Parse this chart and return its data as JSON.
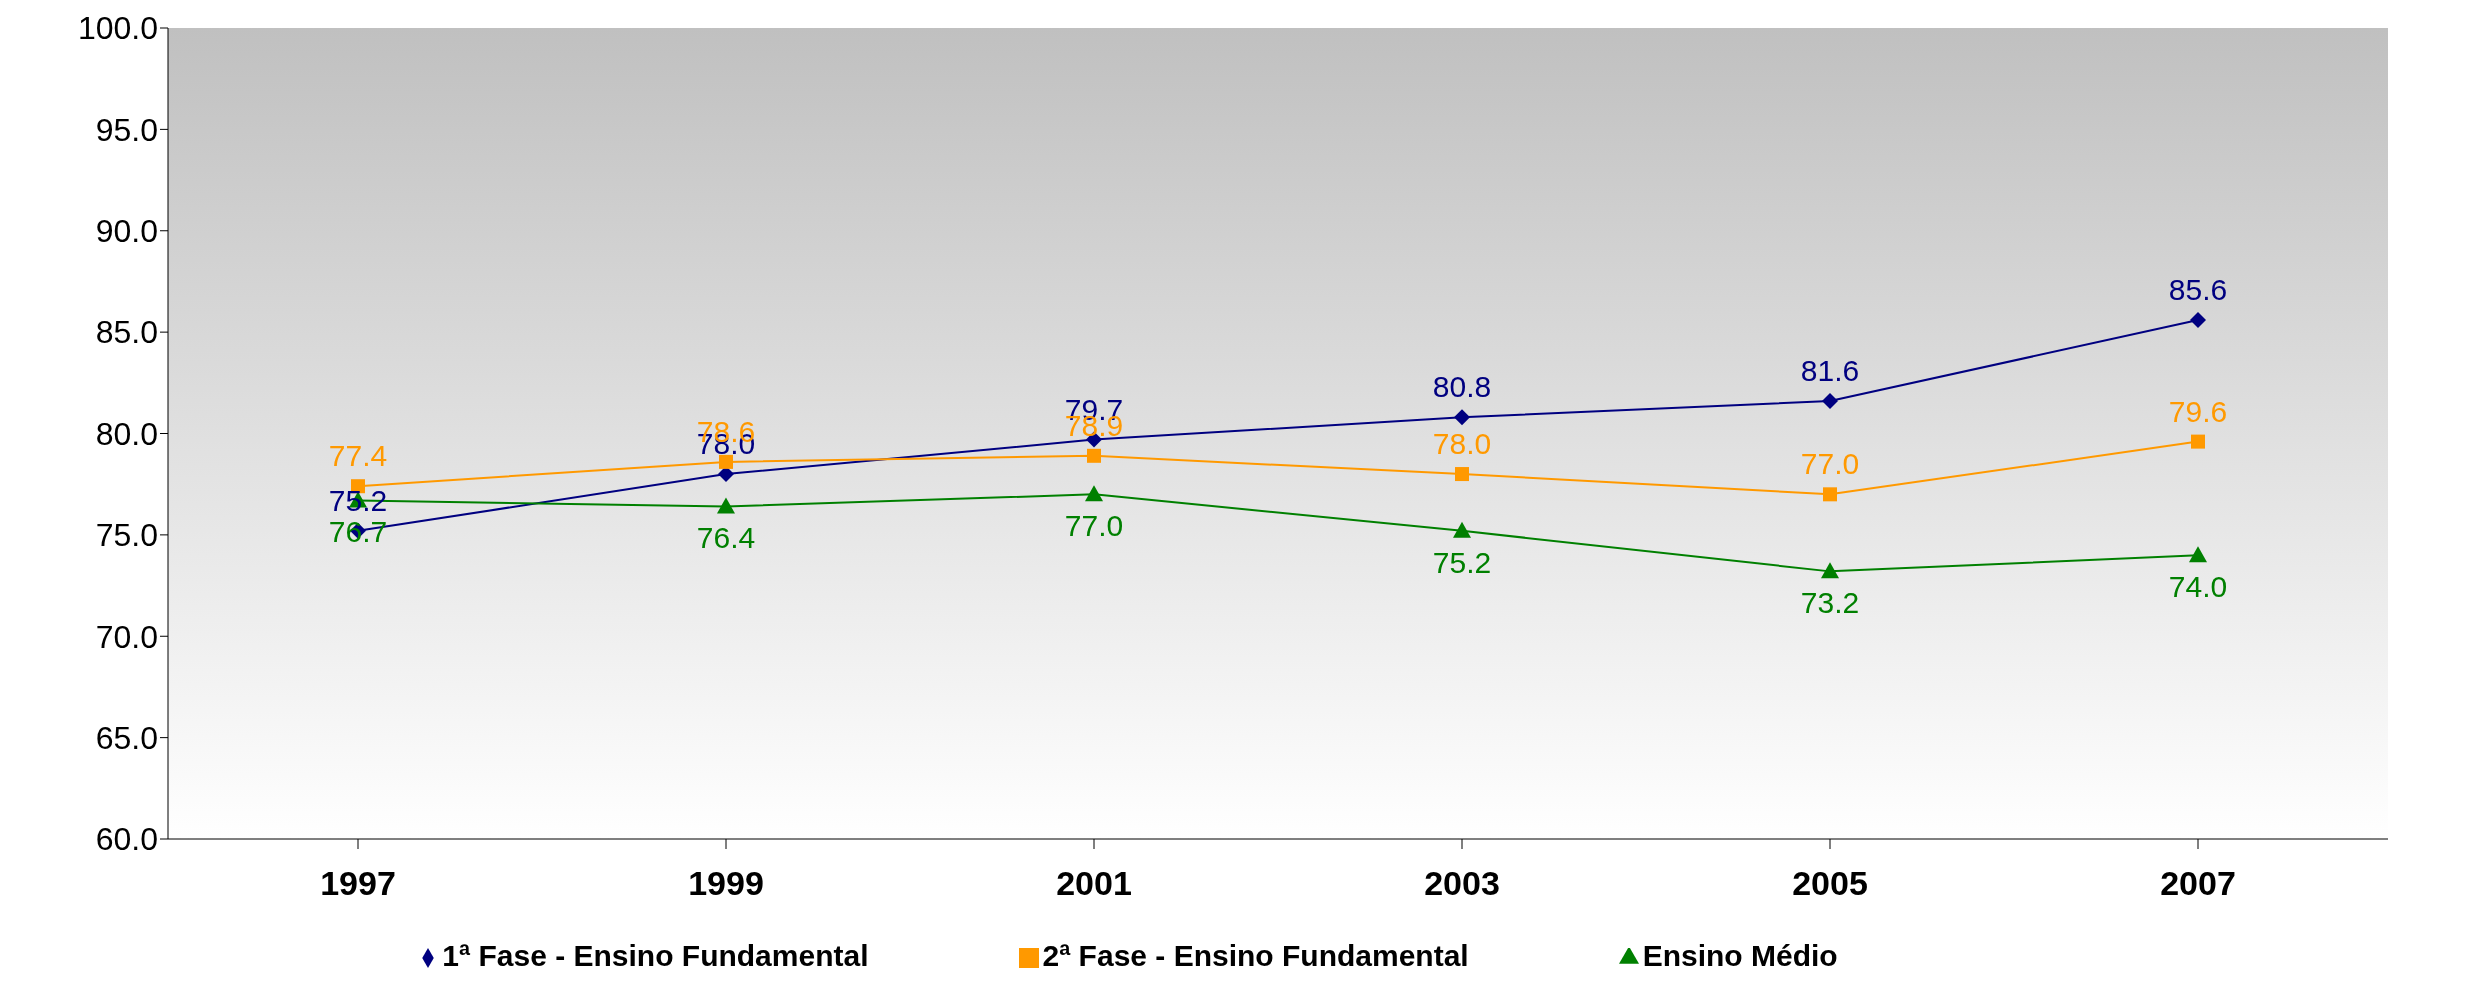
{
  "chart_data": {
    "type": "line",
    "categories": [
      "1997",
      "1999",
      "2001",
      "2003",
      "2005",
      "2007"
    ],
    "series": [
      {
        "name": "1ª Fase - Ensino Fundamental",
        "color": "#000080",
        "marker": "diamond",
        "values": [
          75.2,
          78.0,
          79.7,
          80.8,
          81.6,
          85.6
        ],
        "value_labels": [
          "75.2",
          "78.0",
          "79.7",
          "80.8",
          "81.6",
          "85.6"
        ]
      },
      {
        "name": "2ª Fase - Ensino Fundamental",
        "color": "#ff9900",
        "marker": "square",
        "values": [
          77.4,
          78.6,
          78.9,
          78.0,
          77.0,
          79.6
        ],
        "value_labels": [
          "77.4",
          "78.6",
          "78.9",
          "78.0",
          "77.0",
          "79.6"
        ]
      },
      {
        "name": "Ensino Médio",
        "color": "#008000",
        "marker": "triangle",
        "values": [
          76.7,
          76.4,
          77.0,
          75.2,
          73.2,
          74.0
        ],
        "value_labels": [
          "76.7",
          "76.4",
          "77.0",
          "75.2",
          "73.2",
          "74.0"
        ]
      }
    ],
    "ylim": [
      60,
      100
    ],
    "yticks": [
      {
        "value": 60,
        "label": "60.0"
      },
      {
        "value": 65,
        "label": "65.0"
      },
      {
        "value": 70,
        "label": "70.0"
      },
      {
        "value": 75,
        "label": "75.0"
      },
      {
        "value": 80,
        "label": "80.0"
      },
      {
        "value": 85,
        "label": "85.0"
      },
      {
        "value": 90,
        "label": "90.0"
      },
      {
        "value": 95,
        "label": "95.0"
      },
      {
        "value": 100,
        "label": "100.0"
      }
    ],
    "grid": false,
    "legend": "bottom",
    "line_style": "solid"
  }
}
